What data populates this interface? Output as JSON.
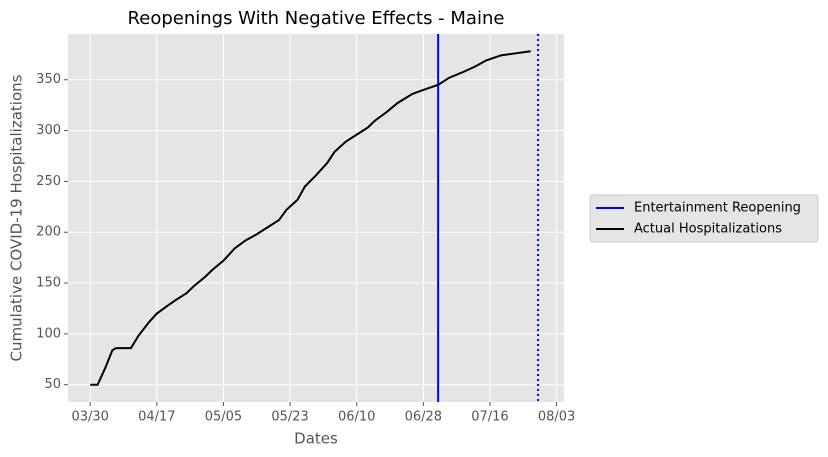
{
  "chart_data": {
    "type": "line",
    "title": "Reopenings With Negative Effects - Maine",
    "x_label": "Dates",
    "y_label": "Cumulative COVID-19 Hospitalizations",
    "xlim": [
      "03/24",
      "08/05"
    ],
    "xticks": [
      "03/30",
      "04/17",
      "05/05",
      "05/23",
      "06/10",
      "06/28",
      "07/16",
      "08/03"
    ],
    "ylim": [
      33,
      395
    ],
    "yticks": [
      50,
      100,
      150,
      200,
      250,
      300,
      350
    ],
    "grid": true,
    "legend": "right",
    "vlines": [
      {
        "name": "Entertainment Reopening",
        "x": "07/02",
        "color": "#0000ff",
        "style": "solid"
      },
      {
        "x": "07/29",
        "color": "#0000ff",
        "style": "dotted"
      }
    ],
    "series": [
      {
        "name": "Actual Hospitalizations",
        "color": "#000000",
        "x": [
          "03/30",
          "04/01",
          "04/03",
          "04/05",
          "04/06",
          "04/10",
          "04/12",
          "04/15",
          "04/17",
          "04/20",
          "04/22",
          "04/25",
          "04/27",
          "04/30",
          "05/02",
          "05/05",
          "05/08",
          "05/11",
          "05/14",
          "05/17",
          "05/20",
          "05/22",
          "05/25",
          "05/27",
          "05/30",
          "06/02",
          "06/04",
          "06/07",
          "06/10",
          "06/13",
          "06/15",
          "06/18",
          "06/21",
          "06/25",
          "06/28",
          "07/02",
          "07/05",
          "07/09",
          "07/12",
          "07/15",
          "07/19",
          "07/23",
          "07/27"
        ],
        "values": [
          50,
          50,
          66,
          84,
          86,
          86,
          98,
          112,
          120,
          128,
          133,
          140,
          147,
          156,
          163,
          172,
          184,
          192,
          198,
          205,
          212,
          222,
          232,
          245,
          256,
          268,
          279,
          289,
          296,
          303,
          310,
          318,
          327,
          336,
          340,
          345,
          352,
          358,
          363,
          369,
          374,
          376,
          378
        ]
      }
    ]
  }
}
